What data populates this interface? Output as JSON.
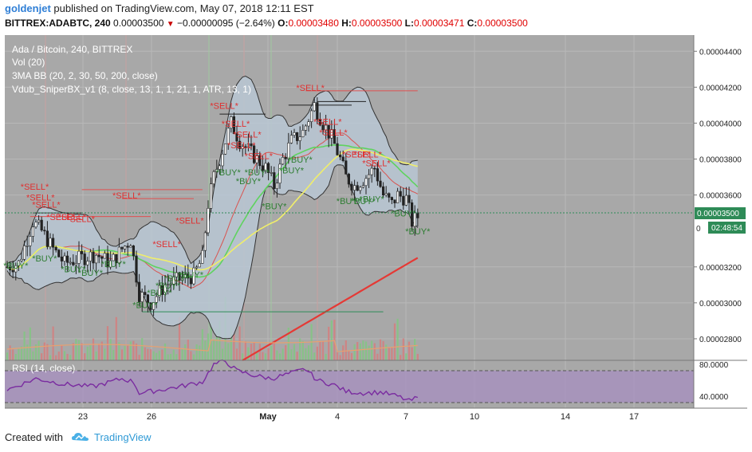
{
  "header": {
    "username": "goldenjet",
    "published_text": "published on TradingView.com, May 07, 2018 12:11 EST",
    "symbol_line": "BITTREX:ADABTC, 240",
    "price": "0.00003500",
    "change_arrow": "▼",
    "change": "−0.00000095 (−2.64%)",
    "o_label": "O:",
    "o_value": "0.00003480",
    "h_label": "H:",
    "h_value": "0.00003500",
    "l_label": "L:",
    "l_value": "0.00003471",
    "c_label": "C:",
    "c_value": "0.00003500"
  },
  "legend": {
    "title": "Ada / Bitcoin, 240, BITTREX",
    "vol": "Vol (20)",
    "bb": "3MA BB (20, 2, 30, 50, 200, close)",
    "sniper": "Vdub_SniperBX_v1 (8, close, 13, 1, 1, 21, 1, ATR, 13, 1)",
    "rsi": "RSI (14, close)"
  },
  "price_axis": {
    "ticks": [
      {
        "value": 4.4e-05,
        "label": "0.00004400"
      },
      {
        "value": 4.2e-05,
        "label": "0.00004200"
      },
      {
        "value": 4e-05,
        "label": "0.00004000"
      },
      {
        "value": 3.8e-05,
        "label": "0.00003800"
      },
      {
        "value": 3.6e-05,
        "label": "0.00003600"
      },
      {
        "value": 3.2e-05,
        "label": "0.00003200"
      },
      {
        "value": 3e-05,
        "label": "0.00003000"
      },
      {
        "value": 2.8e-05,
        "label": "0.00002800"
      }
    ],
    "current_price": {
      "value": 3.5e-05,
      "label": "0.00003500"
    },
    "countdown": "02:48:54",
    "partial_label": "0"
  },
  "rsi_axis": {
    "ticks": [
      {
        "value": 80,
        "label": "80.0000"
      },
      {
        "value": 40,
        "label": "40.0000"
      }
    ]
  },
  "time_axis": {
    "ticks": [
      {
        "label": "23",
        "bold": false
      },
      {
        "label": "26",
        "bold": false
      },
      {
        "label": "May",
        "bold": true
      },
      {
        "label": "4",
        "bold": false
      },
      {
        "label": "7",
        "bold": false
      },
      {
        "label": "10",
        "bold": false
      },
      {
        "label": "14",
        "bold": false
      },
      {
        "label": "17",
        "bold": false
      }
    ]
  },
  "chart_data": {
    "type": "candlestick",
    "title": "Ada / Bitcoin, 240, BITTREX",
    "ylim": [
      2.68e-05,
      4.49e-05
    ],
    "rsi_ylim": [
      25,
      85
    ],
    "signals": [
      {
        "label": "*SELL*",
        "type": "sell",
        "bar": 8,
        "y": 3.63e-05
      },
      {
        "label": "*SELL*",
        "type": "sell",
        "bar": 10,
        "y": 3.57e-05
      },
      {
        "label": "*SELL*",
        "type": "sell",
        "bar": 12,
        "y": 3.53e-05
      },
      {
        "label": "*SELL*",
        "type": "sell",
        "bar": 17,
        "y": 3.46e-05
      },
      {
        "label": "*SELL*",
        "type": "sell",
        "bar": 21,
        "y": 3.46e-05
      },
      {
        "label": "*SELL*",
        "type": "sell",
        "bar": 24,
        "y": 3.45e-05
      },
      {
        "label": "*SELL*",
        "type": "sell",
        "bar": 40,
        "y": 3.58e-05
      },
      {
        "label": "*SELL*",
        "type": "sell",
        "bar": 54,
        "y": 3.31e-05
      },
      {
        "label": "*SELL*",
        "type": "sell",
        "bar": 62,
        "y": 3.44e-05
      },
      {
        "label": "*SELL*",
        "type": "sell",
        "bar": 74,
        "y": 4.08e-05
      },
      {
        "label": "*SELL*",
        "type": "sell",
        "bar": 78,
        "y": 3.98e-05
      },
      {
        "label": "*SELL*",
        "type": "sell",
        "bar": 82,
        "y": 3.92e-05
      },
      {
        "label": "*SELL*",
        "type": "sell",
        "bar": 80,
        "y": 3.86e-05
      },
      {
        "label": "*SELL*",
        "type": "sell",
        "bar": 86,
        "y": 3.8e-05
      },
      {
        "label": "*SELL*",
        "type": "sell",
        "bar": 104,
        "y": 4.18e-05
      },
      {
        "label": "*SELL*",
        "type": "sell",
        "bar": 110,
        "y": 3.99e-05
      },
      {
        "label": "*SELL*",
        "type": "sell",
        "bar": 112,
        "y": 3.93e-05
      },
      {
        "label": "*SELL*",
        "type": "sell",
        "bar": 120,
        "y": 3.81e-05
      },
      {
        "label": "*SELL*",
        "type": "sell",
        "bar": 124,
        "y": 3.81e-05
      },
      {
        "label": "*SELL*",
        "type": "sell",
        "bar": 127,
        "y": 3.76e-05
      },
      {
        "label": "*BUY*",
        "type": "buy",
        "bar": 2,
        "y": 3.19e-05
      },
      {
        "label": "*BUY*",
        "type": "buy",
        "bar": 12,
        "y": 3.23e-05
      },
      {
        "label": "*BUY*",
        "type": "buy",
        "bar": 22,
        "y": 3.17e-05
      },
      {
        "label": "*BUY*",
        "type": "buy",
        "bar": 28,
        "y": 3.15e-05
      },
      {
        "label": "*BUY*",
        "type": "buy",
        "bar": 36,
        "y": 3.2e-05
      },
      {
        "label": "*BUY*",
        "type": "buy",
        "bar": 47,
        "y": 2.97e-05
      },
      {
        "label": "*BUY*",
        "type": "buy",
        "bar": 52,
        "y": 3.04e-05
      },
      {
        "label": "*BUY*",
        "type": "buy",
        "bar": 55,
        "y": 3.08e-05
      },
      {
        "label": "*BUY*",
        "type": "buy",
        "bar": 58,
        "y": 3.12e-05
      },
      {
        "label": "*BUY*",
        "type": "buy",
        "bar": 63,
        "y": 3.14e-05
      },
      {
        "label": "*BUY*",
        "type": "buy",
        "bar": 76,
        "y": 3.71e-05
      },
      {
        "label": "*BUY*",
        "type": "buy",
        "bar": 83,
        "y": 3.66e-05
      },
      {
        "label": "*BUY*",
        "type": "buy",
        "bar": 86,
        "y": 3.71e-05
      },
      {
        "label": "*BUY*",
        "type": "buy",
        "bar": 92,
        "y": 3.52e-05
      },
      {
        "label": "*BUY*",
        "type": "buy",
        "bar": 98,
        "y": 3.72e-05
      },
      {
        "label": "*BUY*",
        "type": "buy",
        "bar": 101,
        "y": 3.78e-05
      },
      {
        "label": "*BUY*",
        "type": "buy",
        "bar": 118,
        "y": 3.55e-05
      },
      {
        "label": "*BUY*",
        "type": "buy",
        "bar": 123,
        "y": 3.55e-05
      },
      {
        "label": "*BUY*",
        "type": "buy",
        "bar": 126,
        "y": 3.56e-05
      },
      {
        "label": "*BUY*",
        "type": "buy",
        "bar": 137,
        "y": 3.48e-05
      },
      {
        "label": "*BUY*",
        "type": "buy",
        "bar": 142,
        "y": 3.38e-05
      }
    ]
  }
}
